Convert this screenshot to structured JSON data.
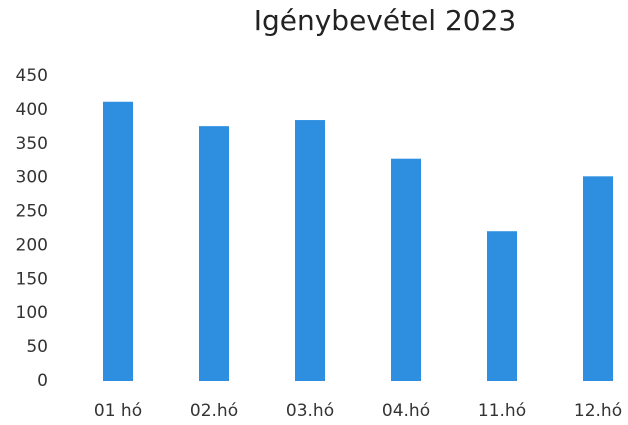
{
  "chart_data": {
    "type": "bar",
    "title": "Igénybevétel 2023",
    "categories": [
      "01 hó",
      "02.hó",
      "03.hó",
      "04.hó",
      "11.hó",
      "12.hó"
    ],
    "values": [
      412,
      376,
      385,
      328,
      221,
      302
    ],
    "color": "#2e8fe0",
    "ylim": [
      0,
      450
    ],
    "yticks": [
      0,
      50,
      100,
      150,
      200,
      250,
      300,
      350,
      400,
      450
    ],
    "grid": false
  }
}
